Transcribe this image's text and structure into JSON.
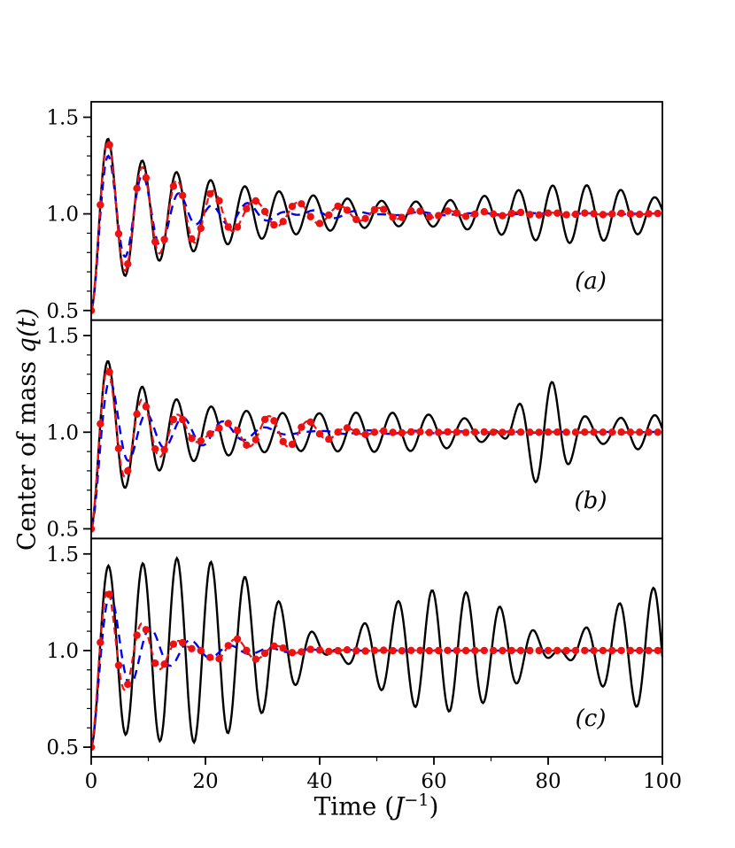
{
  "figure": {
    "ylabel_text": "Center of mass ",
    "ylabel_math": "q(t)",
    "xlabel_pre": "Time (",
    "xlabel_J": "J",
    "xlabel_exp": "−1",
    "xlabel_post": ")",
    "background": "#ffffff",
    "axis_color": "#000000"
  },
  "chart_data": [
    {
      "type": "line",
      "id": "a",
      "label": "(a)",
      "xlim": [
        0,
        100
      ],
      "ylim": [
        0.45,
        1.58
      ],
      "xticks": [
        0,
        20,
        40,
        60,
        80,
        100
      ],
      "xtick_labels": [
        "0",
        "20",
        "40",
        "60",
        "80",
        "100"
      ],
      "yticks": [
        0.5,
        1.0,
        1.5
      ],
      "ytick_labels": [
        "0.5",
        "1.0",
        "1.5"
      ],
      "series": [
        {
          "name": "black-solid",
          "color": "#000000",
          "width": 2.4,
          "dash": "",
          "base": 1.0,
          "components": [
            {
              "a": -0.35,
              "env": "exp",
              "tau": 30,
              "omega": 1.05,
              "phi": 0
            },
            {
              "a": -0.15,
              "env": "exp",
              "tau": 4,
              "omega": 1.05,
              "phi": 0
            },
            {
              "a": -0.13,
              "env": "gauss",
              "center": 85,
              "width": 18,
              "omega": 1.05,
              "phi": 0
            }
          ]
        },
        {
          "name": "blue-dashed",
          "color": "#0000ee",
          "width": 2.4,
          "dash": "10,7",
          "base": 1.0,
          "components": [
            {
              "a": -0.35,
              "env": "exp",
              "tau": 12,
              "omega": 1.03,
              "phi": 0
            },
            {
              "a": -0.15,
              "env": "exp",
              "tau": 4,
              "omega": 1.03,
              "phi": 0
            },
            {
              "a": -0.05,
              "env": "exp",
              "tau": 30,
              "omega": 0.63,
              "phi": -1.6
            }
          ]
        },
        {
          "name": "red-dotted-markers",
          "color": "#ee1111",
          "width": 2.2,
          "dash": "8,5",
          "base": 1.0,
          "marker": "circle",
          "marker_step": 1.6,
          "marker_r": 4.2,
          "components": [
            {
              "a": -0.35,
              "env": "exp",
              "tau": 20,
              "omega": 1.05,
              "phi": 0
            },
            {
              "a": -0.15,
              "env": "exp",
              "tau": 4,
              "omega": 1.05,
              "phi": 0
            },
            {
              "a": -0.13,
              "env": "gauss",
              "center": 32,
              "width": 12,
              "omega": 0.95,
              "phi": 0.3
            }
          ]
        }
      ]
    },
    {
      "type": "line",
      "id": "b",
      "label": "(b)",
      "xlim": [
        0,
        100
      ],
      "ylim": [
        0.45,
        1.58
      ],
      "xticks": [
        0,
        20,
        40,
        60,
        80,
        100
      ],
      "xtick_labels": [
        "0",
        "20",
        "40",
        "60",
        "80",
        "100"
      ],
      "yticks": [
        0.5,
        1.0,
        1.5
      ],
      "ytick_labels": [
        "0.5",
        "1.0",
        "1.5"
      ],
      "series": [
        {
          "name": "black-solid",
          "color": "#000000",
          "width": 2.4,
          "dash": "",
          "base": 1.0,
          "components": [
            {
              "a": -0.36,
              "env": "exp",
              "tau": 18,
              "omega": 1.05,
              "phi": 0
            },
            {
              "a": -0.14,
              "env": "exp",
              "tau": 3.5,
              "omega": 1.05,
              "phi": 0
            },
            {
              "a": -0.11,
              "env": "gauss",
              "center": 52,
              "width": 25,
              "omega": 1.0,
              "phi": 0.5
            },
            {
              "a": -0.3,
              "env": "gauss",
              "center": 79,
              "width": 6,
              "omega": 1.05,
              "phi": 0
            },
            {
              "a": -0.09,
              "env": "gauss",
              "center": 97,
              "width": 10,
              "omega": 1.05,
              "phi": 0
            }
          ]
        },
        {
          "name": "blue-dashed",
          "color": "#0000ee",
          "width": 2.4,
          "dash": "10,7",
          "base": 1.0,
          "components": [
            {
              "a": -0.32,
              "env": "exp",
              "tau": 10,
              "omega": 0.95,
              "phi": 0
            },
            {
              "a": -0.18,
              "env": "exp",
              "tau": 3.5,
              "omega": 0.95,
              "phi": 0
            },
            {
              "a": -0.06,
              "env": "exp",
              "tau": 25,
              "omega": 0.75,
              "phi": -1.6
            }
          ]
        },
        {
          "name": "red-dotted-markers",
          "color": "#ee1111",
          "width": 2.2,
          "dash": "8,5",
          "base": 1.0,
          "marker": "circle",
          "marker_step": 1.6,
          "marker_r": 4.2,
          "components": [
            {
              "a": -0.32,
              "env": "exp",
              "tau": 12,
              "omega": 1.05,
              "phi": 0
            },
            {
              "a": -0.18,
              "env": "exp",
              "tau": 3.5,
              "omega": 1.05,
              "phi": 0
            },
            {
              "a": -0.1,
              "env": "gauss",
              "center": 28,
              "width": 12,
              "omega": 0.9,
              "phi": 0.5
            }
          ]
        }
      ]
    },
    {
      "type": "line",
      "id": "c",
      "label": "(c)",
      "xlim": [
        0,
        100
      ],
      "ylim": [
        0.45,
        1.58
      ],
      "xticks": [
        0,
        20,
        40,
        60,
        80,
        100
      ],
      "xtick_labels": [
        "0",
        "20",
        "40",
        "60",
        "80",
        "100"
      ],
      "yticks": [
        0.5,
        1.0,
        1.5
      ],
      "ytick_labels": [
        "0.5",
        "1.0",
        "1.5"
      ],
      "series": [
        {
          "name": "black-solid",
          "color": "#000000",
          "width": 2.4,
          "dash": "",
          "base": 1.0,
          "components": [
            {
              "a": -0.28,
              "env": "exp",
              "tau": 25,
              "omega": 1.05,
              "phi": 0
            },
            {
              "a": -0.18,
              "env": "exp",
              "tau": 3.5,
              "omega": 1.05,
              "phi": 0
            },
            {
              "a": -0.17,
              "env": "const",
              "omega": 0.98,
              "phi": 1.3
            },
            {
              "a": -0.17,
              "env": "const",
              "omega": 1.13,
              "phi": -1.6
            }
          ]
        },
        {
          "name": "blue-dashed",
          "color": "#0000ee",
          "width": 2.4,
          "dash": "10,7",
          "base": 1.0,
          "components": [
            {
              "a": -0.3,
              "env": "exp",
              "tau": 10,
              "omega": 0.9,
              "phi": 0
            },
            {
              "a": -0.2,
              "env": "exp",
              "tau": 3.5,
              "omega": 0.9,
              "phi": 0
            }
          ]
        },
        {
          "name": "red-dotted-markers",
          "color": "#ee1111",
          "width": 2.2,
          "dash": "8,5",
          "base": 1.0,
          "marker": "circle",
          "marker_step": 1.6,
          "marker_r": 4.2,
          "components": [
            {
              "a": -0.3,
              "env": "exp",
              "tau": 10,
              "omega": 1.05,
              "phi": 0
            },
            {
              "a": -0.2,
              "env": "exp",
              "tau": 3.5,
              "omega": 1.05,
              "phi": 0
            },
            {
              "a": -0.08,
              "env": "gauss",
              "center": 22,
              "width": 8,
              "omega": 0.85,
              "phi": 0.8
            }
          ]
        }
      ]
    }
  ]
}
